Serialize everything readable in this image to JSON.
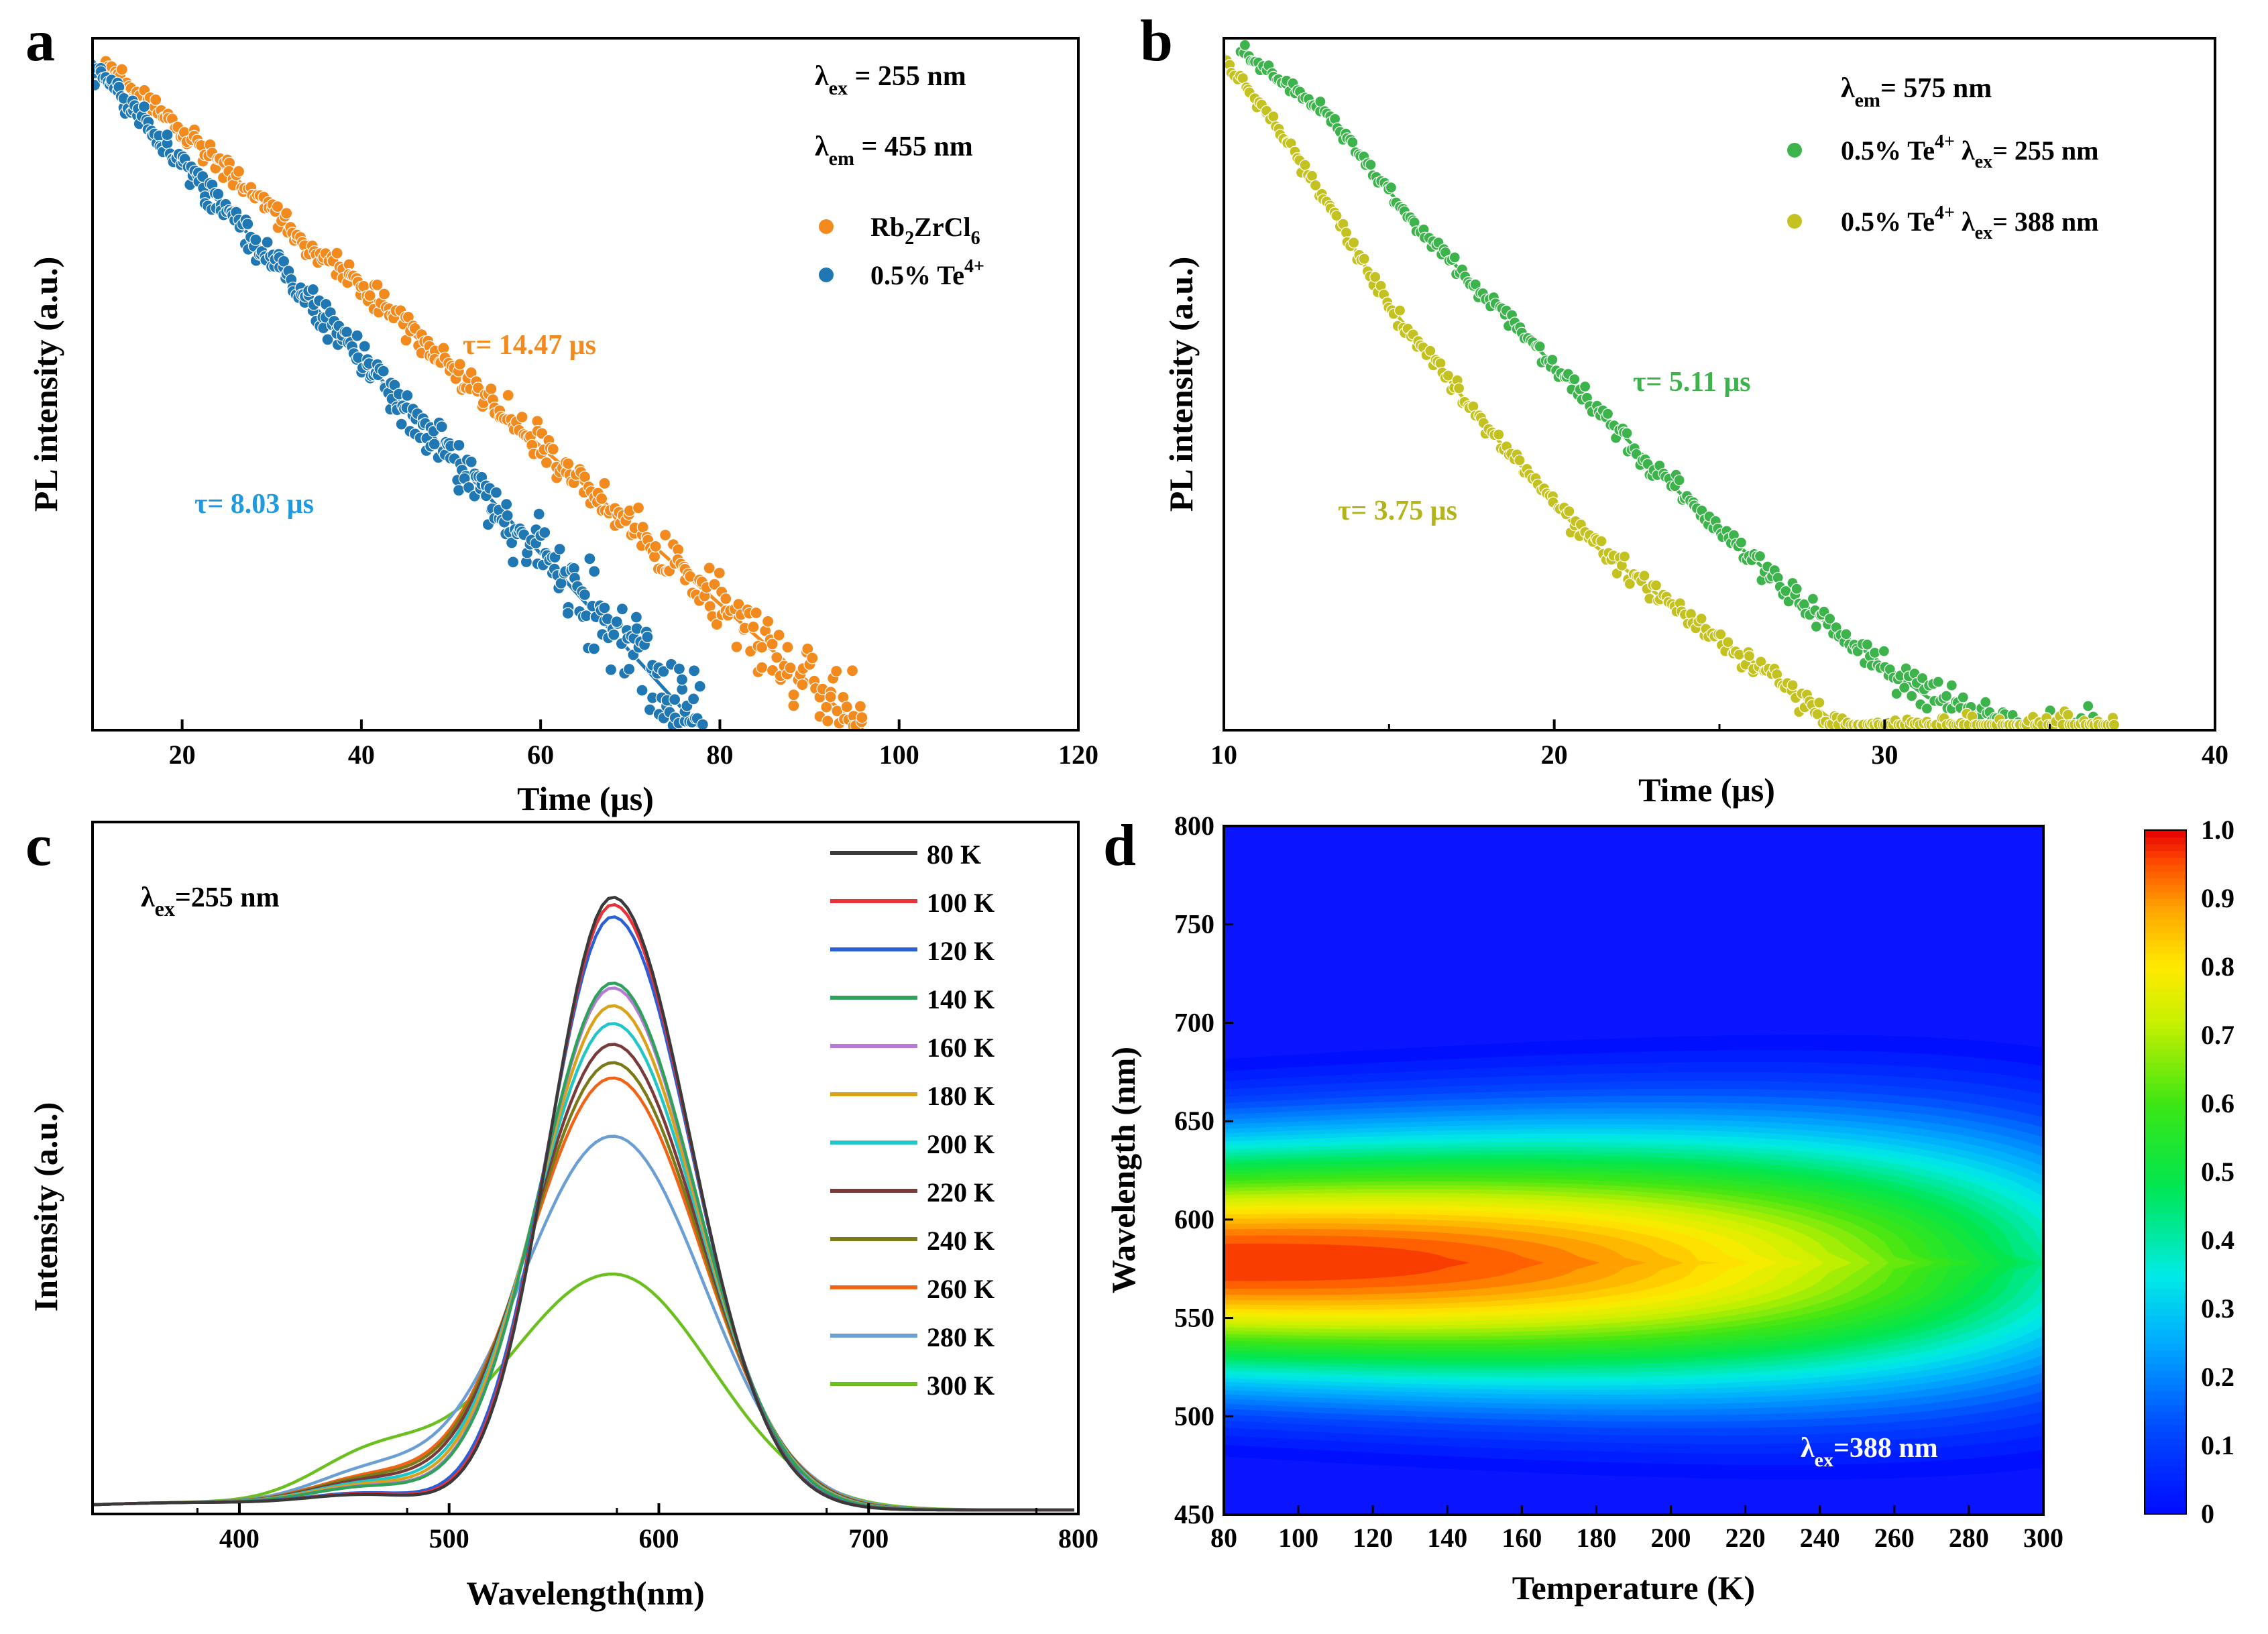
{
  "chart_data": [
    {
      "panel": "a",
      "type": "scatter",
      "xlabel": "Time (μs)",
      "ylabel": "PL intensity (a.u.)",
      "xlim": [
        10,
        120
      ],
      "xticks": [
        "20",
        "40",
        "60",
        "80",
        "100",
        "120"
      ],
      "yscale": "log",
      "annotations": [
        {
          "base": "λ",
          "sub": "ex",
          "rest": " = 255 nm"
        },
        {
          "base": "λ",
          "sub": "em",
          "rest": " = 455 nm"
        }
      ],
      "series": [
        {
          "name": "Rb₂ZrCl₆",
          "legend_base": "Rb",
          "legend_sub1": "2",
          "legend_mid": "ZrCl",
          "legend_sub2": "6",
          "color": "#f28a1e",
          "tau_label": "τ= 14.47 μs",
          "t0": 11,
          "t_end": 96,
          "decades": 2.7
        },
        {
          "name": "0.5% Te⁴⁺",
          "legend_base": "0.5% Te",
          "legend_sup": "4+",
          "color": "#1f77b4",
          "tau_label": "τ= 8.03 μs",
          "t0": 10,
          "t_end": 78,
          "decades": 3.0
        }
      ]
    },
    {
      "panel": "b",
      "type": "scatter",
      "xlabel": "Time (μs)",
      "ylabel": "PL intensity (a.u.)",
      "xlim": [
        10,
        40
      ],
      "xticks": [
        "10",
        "20",
        "30",
        "40"
      ],
      "yscale": "log",
      "annotations": [
        {
          "base": "λ",
          "sub": "em",
          "rest": "= 575 nm"
        }
      ],
      "series": [
        {
          "name": "0.5% Te⁴⁺ λex=255 nm",
          "legend_base": "0.5% Te",
          "legend_sup": "4+",
          "legend_mid": " λ",
          "legend_sub": "ex",
          "legend_rest": "= 255 nm",
          "color": "#3cb44b",
          "tau_label": "τ= 5.11 μs",
          "t0": 10.5,
          "t_end": 36.5
        },
        {
          "name": "0.5% Te⁴⁺ λex=388 nm",
          "legend_base": "0.5% Te",
          "legend_sup": "4+",
          "legend_mid": " λ",
          "legend_sub": "ex",
          "legend_rest": "= 388 nm",
          "color": "#c4c220",
          "tau_label": "τ= 3.75 μs",
          "t0": 10,
          "t_end": 37
        }
      ]
    },
    {
      "panel": "c",
      "type": "line",
      "xlabel": "Wavelength(nm)",
      "ylabel": "Intensity (a.u.)",
      "xlim": [
        330,
        800
      ],
      "xticks": [
        "400",
        "500",
        "600",
        "700",
        "800"
      ],
      "annotation": {
        "base": "λ",
        "sub": "ex",
        "rest": "=255 nm"
      },
      "peak_nm": 578,
      "series": [
        {
          "name": "80 K",
          "color": "#3a3a3a",
          "peak": 1.0
        },
        {
          "name": "100 K",
          "color": "#e8333a",
          "peak": 0.988
        },
        {
          "name": "120 K",
          "color": "#2a5fd6",
          "peak": 0.968
        },
        {
          "name": "140 K",
          "color": "#2ea25a",
          "peak": 0.86
        },
        {
          "name": "160 K",
          "color": "#b77ad6",
          "peak": 0.852
        },
        {
          "name": "180 K",
          "color": "#d9a21a",
          "peak": 0.823
        },
        {
          "name": "200 K",
          "color": "#22c6c6",
          "peak": 0.794
        },
        {
          "name": "220 K",
          "color": "#7a3a3a",
          "peak": 0.76
        },
        {
          "name": "240 K",
          "color": "#7a7a18",
          "peak": 0.73
        },
        {
          "name": "260 K",
          "color": "#f06418",
          "peak": 0.705
        },
        {
          "name": "280 K",
          "color": "#6b9fd3",
          "peak": 0.61
        },
        {
          "name": "300 K",
          "color": "#6bbf1f",
          "peak": 0.385
        }
      ]
    },
    {
      "panel": "d",
      "type": "heatmap",
      "xlabel": "Temperature (K)",
      "ylabel": "Wavelength (nm)",
      "xlim": [
        80,
        300
      ],
      "ylim": [
        450,
        800
      ],
      "xticks": [
        "80",
        "100",
        "120",
        "140",
        "160",
        "180",
        "200",
        "220",
        "240",
        "260",
        "280",
        "300"
      ],
      "yticks": [
        "450",
        "500",
        "550",
        "600",
        "650",
        "700",
        "750",
        "800"
      ],
      "colorbar_ticks": [
        "0",
        "0.1",
        "0.2",
        "0.3",
        "0.4",
        "0.5",
        "0.6",
        "0.7",
        "0.8",
        "0.9",
        "1.0"
      ],
      "colorbar_range": [
        0,
        1.0
      ],
      "peak_nm": 578,
      "annotation": {
        "base": "λ",
        "sub": "ex",
        "rest": "=388 nm"
      }
    }
  ]
}
